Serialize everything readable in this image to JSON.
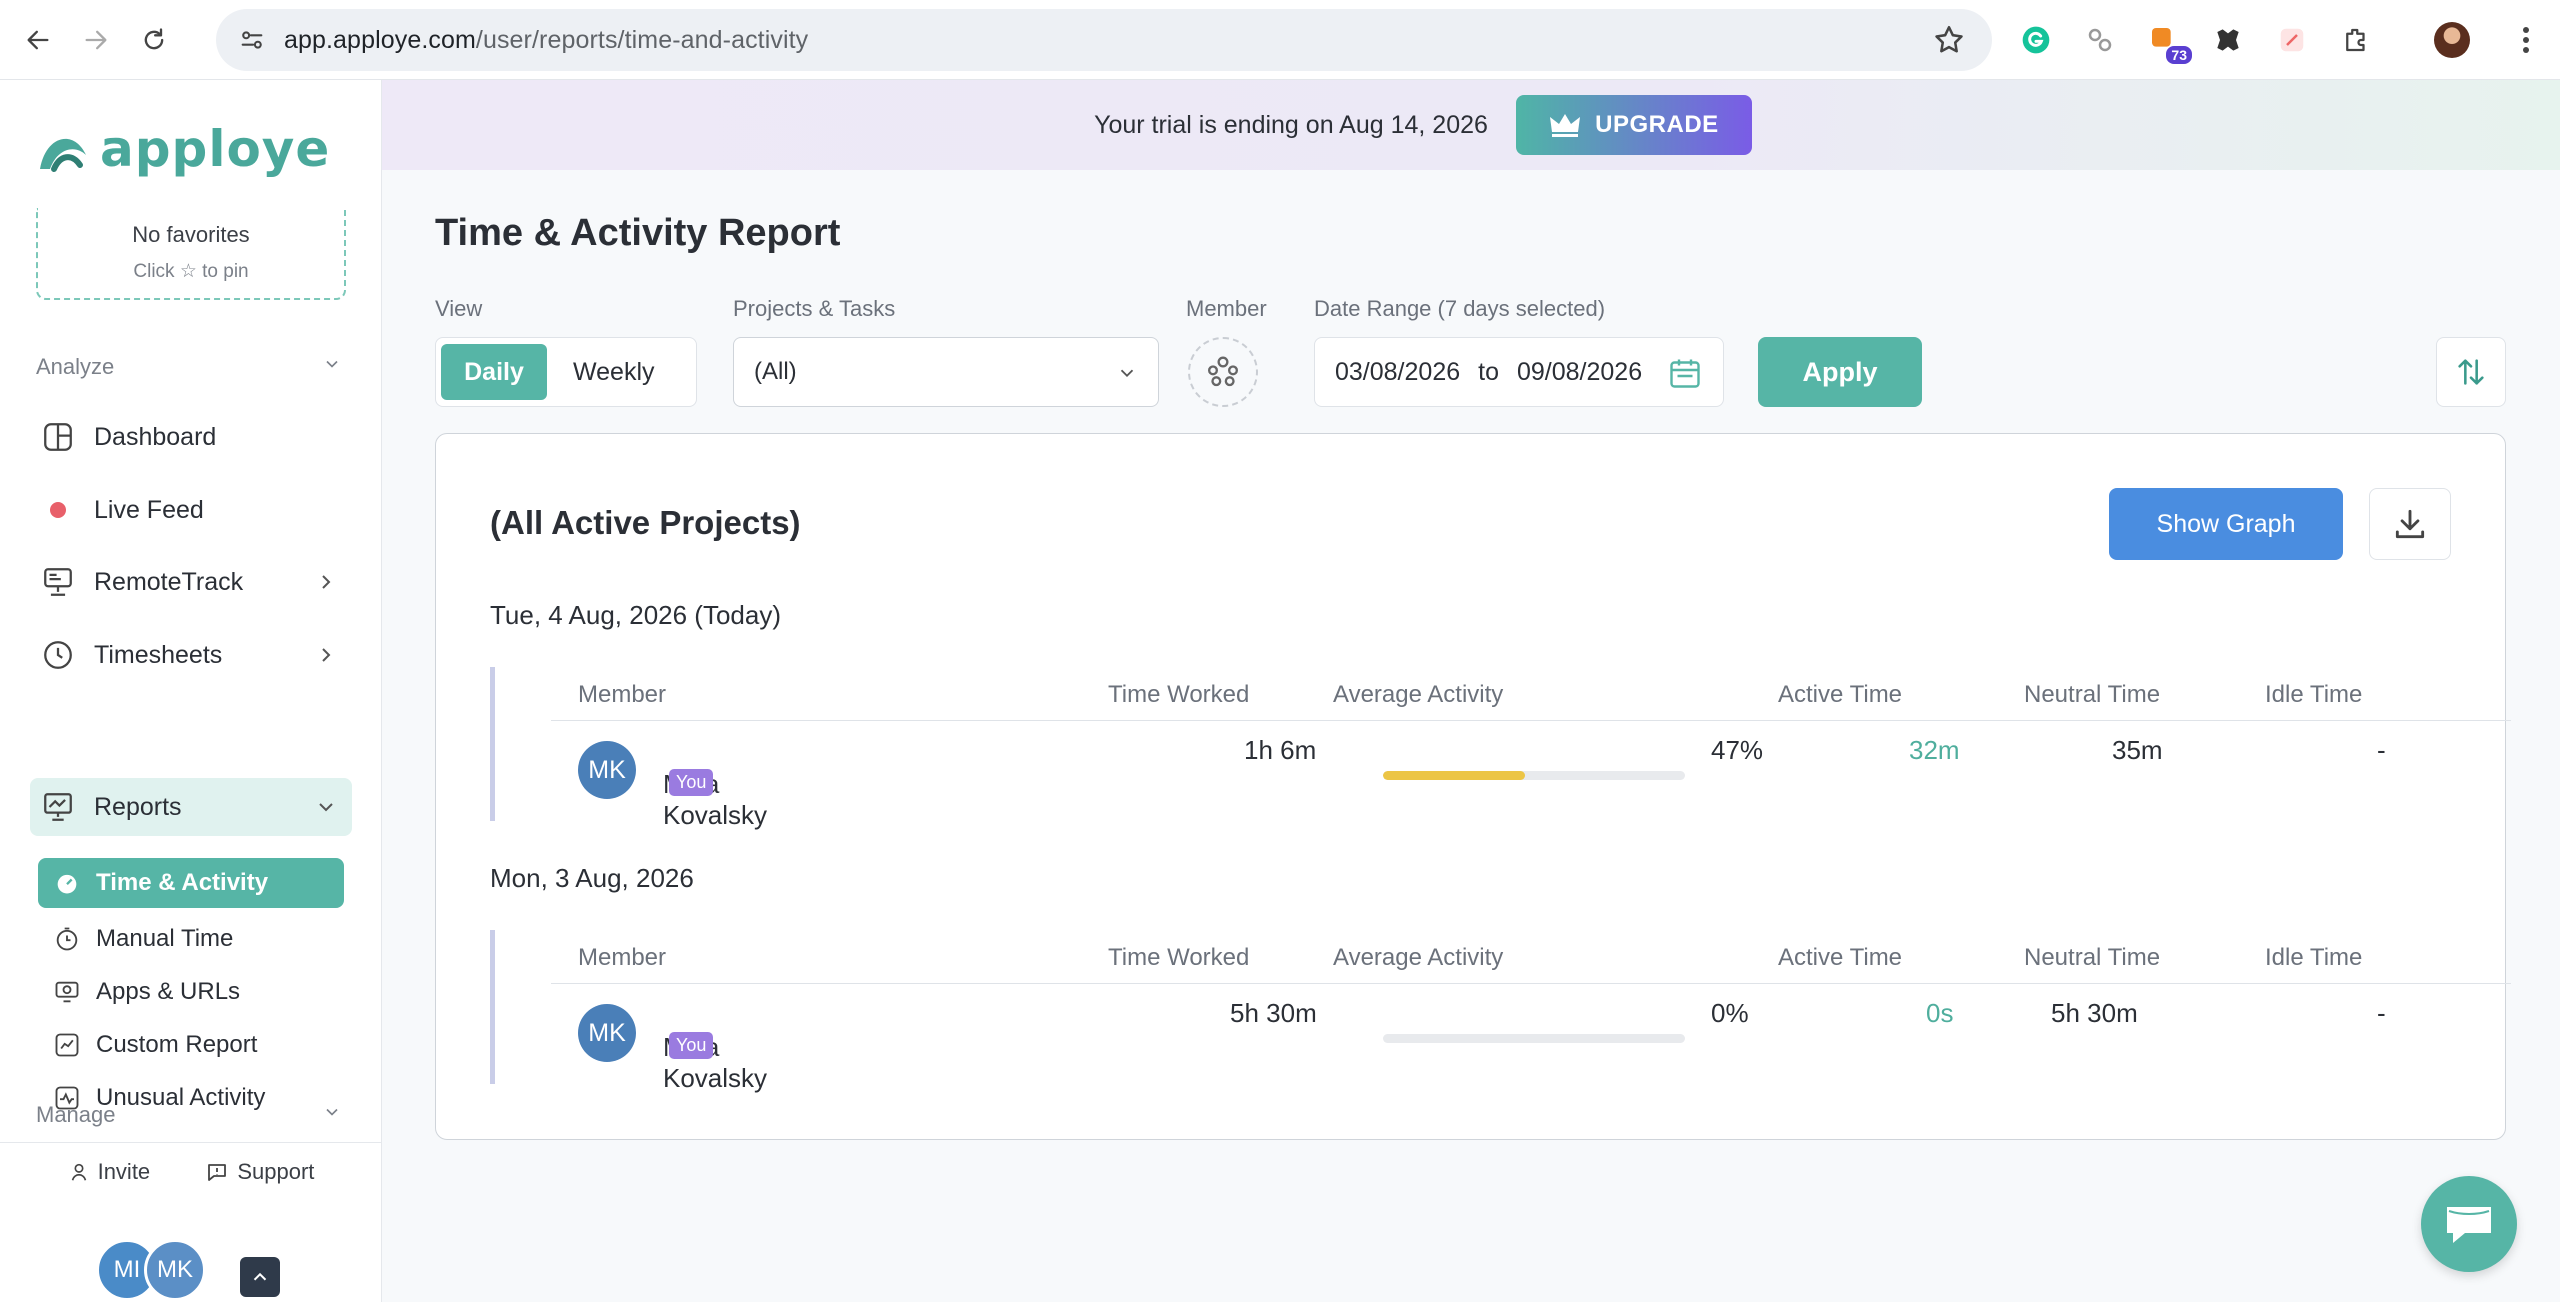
{
  "browser": {
    "url_host": "app.apploye.com",
    "url_path": "/user/reports/time-and-activity",
    "extension_badge": "73"
  },
  "sidebar": {
    "logo_text": "apploye",
    "favorites": {
      "title": "No favorites",
      "hint": "Click ☆ to pin"
    },
    "sections": {
      "analyze": "Analyze",
      "manage": "Manage"
    },
    "items": [
      {
        "label": "Dashboard",
        "icon": "dashboard-icon"
      },
      {
        "label": "Live Feed",
        "icon": "live-dot-icon"
      },
      {
        "label": "RemoteTrack",
        "icon": "monitor-icon"
      },
      {
        "label": "Timesheets",
        "icon": "clock-icon"
      },
      {
        "label": "Reports",
        "icon": "chart-board-icon"
      }
    ],
    "reports_sub": [
      {
        "label": "Time & Activity"
      },
      {
        "label": "Manual Time"
      },
      {
        "label": "Apps & URLs"
      },
      {
        "label": "Custom Report"
      },
      {
        "label": "Unusual Activity"
      }
    ],
    "footer": {
      "invite": "Invite",
      "support": "Support"
    },
    "avatars": [
      "MI",
      "MK"
    ]
  },
  "banner": {
    "message": "Your trial is ending on Aug 14, 2026",
    "upgrade_label": "UPGRADE"
  },
  "page": {
    "title": "Time & Activity Report",
    "filters": {
      "view_label": "View",
      "view_options": [
        "Daily",
        "Weekly"
      ],
      "view_selected": "Daily",
      "projects_label": "Projects & Tasks",
      "projects_value": "(All)",
      "member_label": "Member",
      "date_range_label": "Date Range (7 days selected)",
      "date_from": "03/08/2026",
      "date_to_word": "to",
      "date_to": "09/08/2026",
      "apply_label": "Apply"
    },
    "card": {
      "title": "(All Active Projects)",
      "show_graph_label": "Show Graph",
      "columns": {
        "member": "Member",
        "time_worked": "Time Worked",
        "average_activity": "Average Activity",
        "active_time": "Active Time",
        "neutral_time": "Neutral Time",
        "idle_time": "Idle Time"
      },
      "days": [
        {
          "label": "Tue, 4 Aug, 2026 (Today)",
          "row": {
            "initials": "MK",
            "name": "Mina Kovalsky",
            "you_badge": "You",
            "time_worked": "1h 6m",
            "activity_percent": 47,
            "activity_text": "47%",
            "active_time": "32m",
            "neutral_time": "35m",
            "idle_time": "-"
          }
        },
        {
          "label": "Mon, 3 Aug, 2026",
          "row": {
            "initials": "MK",
            "name": "Mina Kovalsky",
            "you_badge": "You",
            "time_worked": "5h 30m",
            "activity_percent": 0,
            "activity_text": "0%",
            "active_time": "0s",
            "neutral_time": "5h 30m",
            "idle_time": "-"
          }
        }
      ]
    }
  },
  "colors": {
    "brand_teal": "#56b5a6",
    "graph_blue": "#4a8de0",
    "activity_yellow": "#ecc545",
    "you_badge": "#9a7be0"
  }
}
